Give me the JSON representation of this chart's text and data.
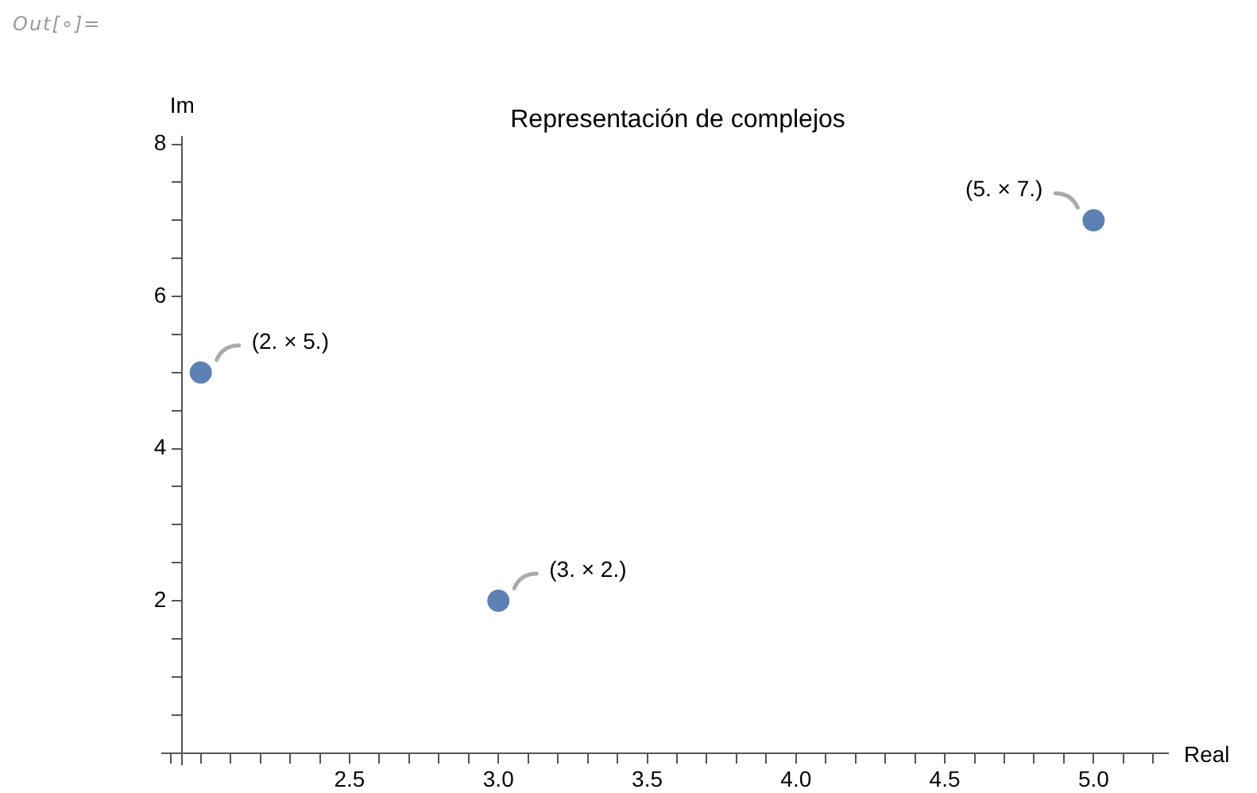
{
  "chart_data": {
    "type": "scatter",
    "title": "Representación de complejos",
    "xlabel": "Real",
    "ylabel": "Im",
    "annotations": [
      "Out[∘]=",
      {
        "text": "(2. × 5.)",
        "x": 2,
        "y": 5
      },
      {
        "text": "(3. × 2.)",
        "x": 3,
        "y": 2
      },
      {
        "text": "(5. × 7.)",
        "x": 5,
        "y": 7
      }
    ],
    "x": [
      2,
      3,
      5
    ],
    "series": [
      {
        "color": "#5e81b5",
        "values": [
          5,
          2,
          7
        ]
      }
    ],
    "marker": "circle",
    "grid": false,
    "legend": false,
    "xlim": [
      1.87,
      5.25
    ],
    "ylim": [
      -0.15,
      8.1
    ],
    "xticks": [
      {
        "value": 1.9,
        "label": null
      },
      {
        "value": 2,
        "label": null
      },
      {
        "value": 2.1,
        "label": null
      },
      {
        "value": 2.2,
        "label": null
      },
      {
        "value": 2.3,
        "label": null
      },
      {
        "value": 2.4,
        "label": null
      },
      2.5,
      {
        "value": 2.6,
        "label": null
      },
      {
        "value": 2.7,
        "label": null
      },
      {
        "value": 2.8,
        "label": null
      },
      {
        "value": 2.9,
        "label": null
      },
      {
        "value": 3,
        "label": "3.0"
      },
      {
        "value": 3.1,
        "label": null
      },
      {
        "value": 3.2,
        "label": null
      },
      {
        "value": 3.3,
        "label": null
      },
      {
        "value": 3.4,
        "label": null
      },
      3.5,
      {
        "value": 3.6,
        "label": null
      },
      {
        "value": 3.7,
        "label": null
      },
      {
        "value": 3.8,
        "label": null
      },
      {
        "value": 3.9,
        "label": null
      },
      {
        "value": 4,
        "label": "4.0"
      },
      {
        "value": 4.1,
        "label": null
      },
      {
        "value": 4.2,
        "label": null
      },
      {
        "value": 4.3,
        "label": null
      },
      {
        "value": 4.4,
        "label": null
      },
      4.5,
      {
        "value": 4.6,
        "label": null
      },
      {
        "value": 4.7,
        "label": null
      },
      {
        "value": 4.8,
        "label": null
      },
      {
        "value": 4.9,
        "label": null
      },
      {
        "value": 5,
        "label": "5.0"
      },
      {
        "value": 5.1,
        "label": null
      },
      {
        "value": 5.2,
        "label": null
      }
    ],
    "yticks": [
      {
        "value": 0.5,
        "label": null
      },
      {
        "value": 1,
        "label": null
      },
      {
        "value": 1.5,
        "label": null
      },
      2,
      {
        "value": 2.5,
        "label": null
      },
      {
        "value": 3,
        "label": null
      },
      {
        "value": 3.5,
        "label": null
      },
      4,
      {
        "value": 4.5,
        "label": null
      },
      {
        "value": 5,
        "label": null
      },
      {
        "value": 5.5,
        "label": null
      },
      6,
      {
        "value": 6.5,
        "label": null
      },
      {
        "value": 7,
        "label": null
      },
      {
        "value": 7.5,
        "label": null
      },
      8
    ]
  }
}
